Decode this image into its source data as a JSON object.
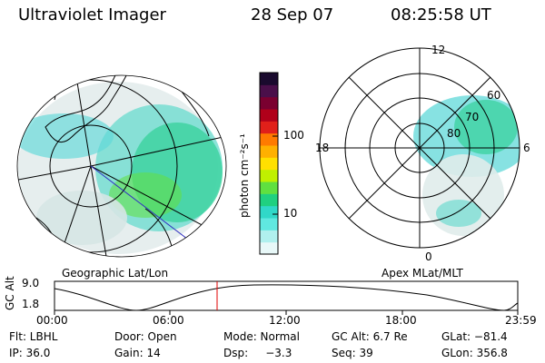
{
  "header": {
    "title": "Ultraviolet Imager",
    "date": "28 Sep 07",
    "time": "08:25:58 UT"
  },
  "colorbar": {
    "label": "photon cm⁻²s⁻¹",
    "ticks": [
      "100",
      "10"
    ],
    "colors": [
      "#1a0a2e",
      "#4a0f4a",
      "#7a0030",
      "#b0001a",
      "#e0201a",
      "#ff7a00",
      "#ffb000",
      "#ffe000",
      "#c0f000",
      "#60e040",
      "#20d080",
      "#30d8c8",
      "#60e8e0",
      "#b0f0ee",
      "#e8f8f8"
    ]
  },
  "left_panel": {
    "label": "Geographic Lat/Lon"
  },
  "right_panel": {
    "label": "Apex MLat/MLT",
    "mlt_labels": {
      "top": "12",
      "left": "18",
      "right": "6",
      "bottom": "0"
    },
    "lat_labels": [
      "60",
      "70",
      "80"
    ]
  },
  "timeline": {
    "axis_label": "GC Alt",
    "y_ticks": [
      "9.0",
      "1.8"
    ],
    "x_ticks": [
      "00:00",
      "06:00",
      "12:00",
      "18:00",
      "23:59"
    ],
    "marker_hours": 8.43
  },
  "footer": {
    "row1": [
      {
        "label": "Flt: LBHL"
      },
      {
        "label": "Door: Open"
      },
      {
        "label": "Mode: Normal"
      },
      {
        "label": "GC Alt: 6.7 Re"
      },
      {
        "label": "GLat: −81.4"
      }
    ],
    "row2": [
      {
        "label": "IP: 36.0"
      },
      {
        "label": "Gain: 14"
      },
      {
        "label": "Dsp:     −3.3"
      },
      {
        "label": "Seq: 39"
      },
      {
        "label": "GLon: 356.8"
      }
    ]
  }
}
